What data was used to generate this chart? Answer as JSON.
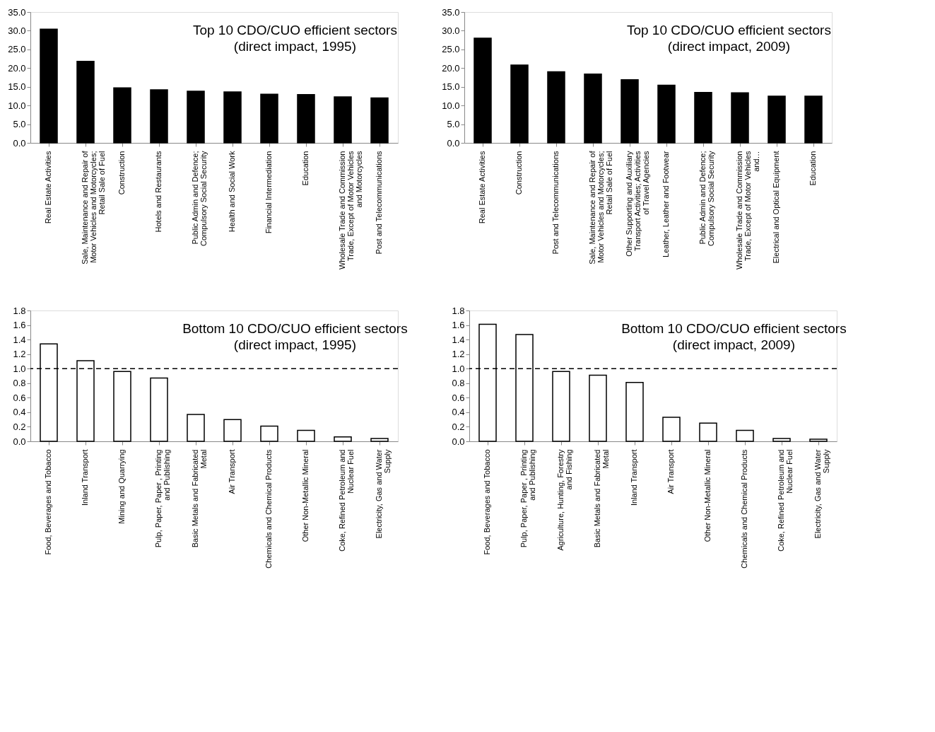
{
  "chart_data": [
    {
      "type": "bar",
      "title": "Top 10 CDO/CUO efficient sectors\n(direct impact, 1995)",
      "categories": [
        "Real Estate Activities",
        "Sale, Maintenance and Repair of Motor Vehicles and Motorcycles; Retail Sale of Fuel",
        "Construction",
        "Hotels and Restaurants",
        "Public Admin and Defence; Compulsory Social Security",
        "Health and Social Work",
        "Financial Intermediation",
        "Education",
        "Wholesale Trade and Commission Trade, Except of Motor Vehicles and Motorcycles",
        "Post and Telecommunications"
      ],
      "values": [
        30.4,
        21.8,
        14.7,
        14.2,
        13.8,
        13.6,
        13.0,
        12.9,
        12.3,
        12.0
      ],
      "color": "#000000",
      "ylim": [
        0,
        35
      ],
      "yticks": [
        {
          "value": 0,
          "label": "0.0"
        },
        {
          "value": 5,
          "label": "5.0"
        },
        {
          "value": 10,
          "label": "10.0"
        },
        {
          "value": 15,
          "label": "15.0"
        },
        {
          "value": 20,
          "label": "20.0"
        },
        {
          "value": 25,
          "label": "25.0"
        },
        {
          "value": 30,
          "label": "30.0"
        },
        {
          "value": 35,
          "label": "35.0"
        }
      ],
      "grid": false
    },
    {
      "type": "bar",
      "title": "Top 10 CDO/CUO efficient sectors\n(direct impact,  2009)",
      "categories": [
        "Real Estate Activities",
        "Construction",
        "Post and Telecommunications",
        "Sale, Maintenance and Repair of Motor Vehicles and Motorcycles; Retail Sale of Fuel",
        "Other Supporting and Auxiliary Transport Activities; Activities of Travel Agencies",
        "Leather, Leather and Footwear",
        "Public Admin and Defence; Compulsory Social Security",
        "Wholesale Trade and Commission Trade, Except of Motor Vehicles and…",
        "Electrical and Optical Equipment",
        "Education"
      ],
      "values": [
        28.0,
        20.8,
        19.0,
        18.4,
        16.9,
        15.4,
        13.5,
        13.4,
        12.5,
        12.5
      ],
      "color": "#000000",
      "ylim": [
        0,
        35
      ],
      "yticks": [
        {
          "value": 0,
          "label": "0.0"
        },
        {
          "value": 5,
          "label": "5.0"
        },
        {
          "value": 10,
          "label": "10.0"
        },
        {
          "value": 15,
          "label": "15.0"
        },
        {
          "value": 20,
          "label": "20.0"
        },
        {
          "value": 25,
          "label": "25.0"
        },
        {
          "value": 30,
          "label": "30.0"
        },
        {
          "value": 35,
          "label": "35.0"
        }
      ],
      "grid": false
    },
    {
      "type": "bar",
      "title": "Bottom 10 CDO/CUO efficient sectors\n(direct impact,  1995)",
      "categories": [
        "Food, Beverages and Tobacco",
        "Inland Transport",
        "Mining and Quarrying",
        "Pulp, Paper, Paper , Printing and Publishing",
        "Basic Metals and Fabricated Metal",
        "Air Transport",
        "Chemicals and Chemical Products",
        "Other Non-Metallic Mineral",
        "Coke, Refined Petroleum and Nuclear Fuel",
        "Electricity, Gas and Water Supply"
      ],
      "values": [
        1.34,
        1.11,
        0.96,
        0.87,
        0.37,
        0.3,
        0.21,
        0.15,
        0.06,
        0.04
      ],
      "color": "#ffffff",
      "ylim": [
        0,
        1.8
      ],
      "yticks": [
        {
          "value": 0,
          "label": "0.0"
        },
        0.2,
        0.4,
        0.6,
        0.8,
        {
          "value": 1,
          "label": "1.0"
        },
        1.2,
        1.4,
        1.6,
        1.8
      ],
      "ref_lines": [
        {
          "axis": "y",
          "value": 1.0,
          "line_style": "dashed",
          "color": "#000000"
        }
      ],
      "grid": false
    },
    {
      "type": "bar",
      "title": "Bottom 10 CDO/CUO efficient sectors\n(direct impact,  2009)",
      "categories": [
        "Food, Beverages and Tobacco",
        "Pulp, Paper, Paper , Printing and Publishing",
        "Agriculture, Hunting, Forestry and Fishing",
        "Basic Metals and Fabricated Metal",
        "Inland Transport",
        "Air Transport",
        "Other Non-Metallic Mineral",
        "Chemicals and Chemical Products",
        "Coke, Refined Petroleum and Nuclear Fuel",
        "Electricity, Gas and Water Supply"
      ],
      "values": [
        1.61,
        1.47,
        0.96,
        0.91,
        0.81,
        0.33,
        0.25,
        0.15,
        0.04,
        0.03
      ],
      "color": "#ffffff",
      "ylim": [
        0,
        1.8
      ],
      "yticks": [
        {
          "value": 0,
          "label": "0.0"
        },
        0.2,
        0.4,
        0.6,
        0.8,
        {
          "value": 1,
          "label": "1.0"
        },
        1.2,
        1.4,
        1.6,
        1.8
      ],
      "ref_lines": [
        {
          "axis": "y",
          "value": 1.0,
          "line_style": "dashed",
          "color": "#000000"
        }
      ],
      "grid": false
    }
  ]
}
